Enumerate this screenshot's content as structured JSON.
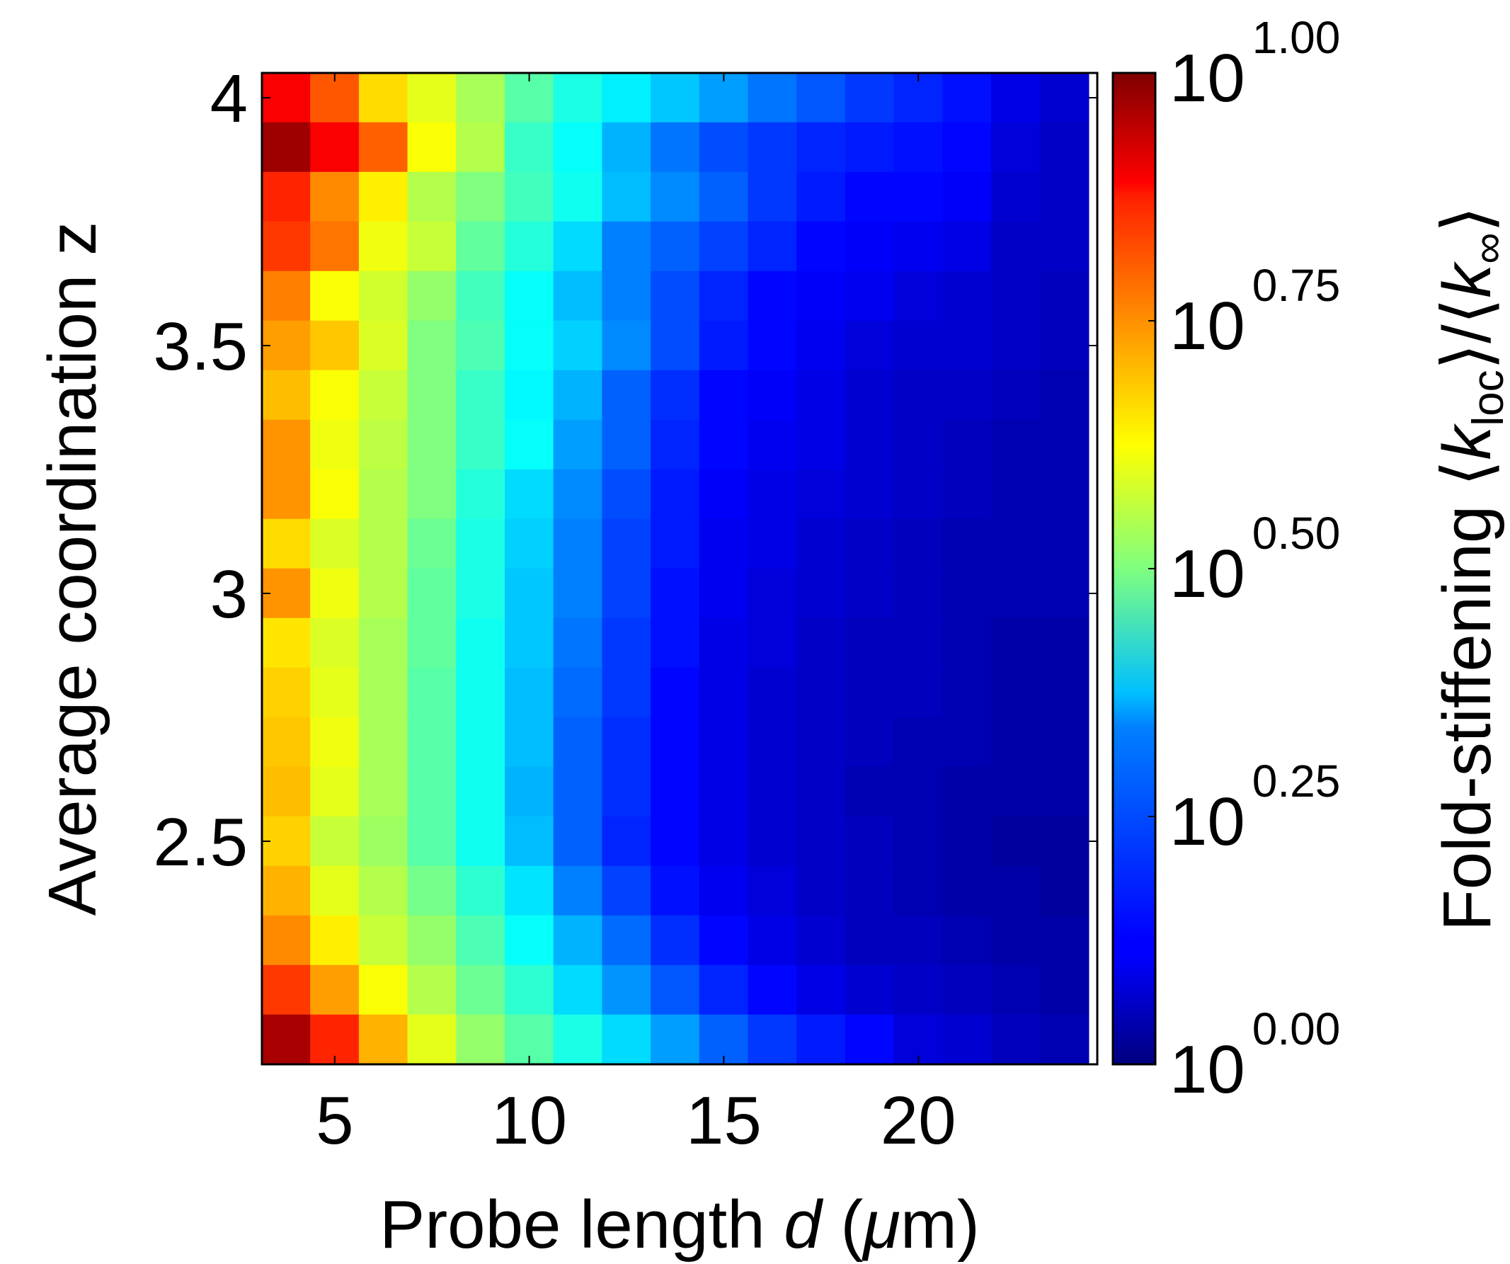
{
  "chart_data": {
    "type": "heatmap",
    "title": "",
    "xlabel": "Probe length d (μm)",
    "xlabel_parts": {
      "prefix": "Probe length ",
      "var": "d",
      "open": " (",
      "mu": "μ",
      "unit": "m)"
    },
    "ylabel": "Average coordination z",
    "colorbar_label": "Fold-stiffening ⟨k_loc⟩/⟨k_∞⟩",
    "colorbar_label_parts": {
      "prefix": "Fold-stiffening ",
      "open": "⟨",
      "k1": "k",
      "sub1": "loc",
      "mid": "⟩/⟨",
      "k2": "k",
      "sub2": "∞",
      "close": "⟩"
    },
    "x_ticks": [
      {
        "value": 5,
        "label": "5"
      },
      {
        "value": 10,
        "label": "10"
      },
      {
        "value": 15,
        "label": "15"
      },
      {
        "value": 20,
        "label": "20"
      }
    ],
    "y_ticks": [
      {
        "value": 4,
        "label": "4"
      },
      {
        "value": 3.5,
        "label": "3.5"
      },
      {
        "value": 3,
        "label": "3"
      },
      {
        "value": 2.5,
        "label": "2.5"
      }
    ],
    "xlim": [
      3.13,
      24.6
    ],
    "ylim": [
      2.05,
      4.05
    ],
    "x_centers": [
      3.75,
      5.0,
      6.25,
      7.5,
      8.75,
      10.0,
      11.25,
      12.5,
      13.75,
      15.0,
      16.25,
      17.5,
      18.75,
      20.0,
      21.25,
      22.5,
      23.75
    ],
    "y_centers": [
      4.0,
      3.9,
      3.8,
      3.7,
      3.6,
      3.5,
      3.4,
      3.3,
      3.2,
      3.1,
      3.0,
      2.9,
      2.8,
      2.7,
      2.6,
      2.5,
      2.4,
      2.3,
      2.2,
      2.1
    ],
    "color_scale": "log10",
    "colormap": "jet",
    "color_range": [
      0,
      1
    ],
    "colorbar_ticks": [
      {
        "base": "10",
        "exp": "0.00",
        "value": 0.0
      },
      {
        "base": "10",
        "exp": "0.25",
        "value": 0.25
      },
      {
        "base": "10",
        "exp": "0.50",
        "value": 0.5
      },
      {
        "base": "10",
        "exp": "0.75",
        "value": 0.75
      },
      {
        "base": "10",
        "exp": "1.00",
        "value": 1.0
      }
    ],
    "log10_values": [
      [
        0.88,
        0.79,
        0.66,
        0.6,
        0.54,
        0.46,
        0.4,
        0.36,
        0.32,
        0.28,
        0.24,
        0.21,
        0.18,
        0.16,
        0.14,
        0.1,
        0.08
      ],
      [
        0.97,
        0.88,
        0.78,
        0.62,
        0.55,
        0.43,
        0.38,
        0.3,
        0.24,
        0.2,
        0.18,
        0.16,
        0.15,
        0.14,
        0.13,
        0.09,
        0.07
      ],
      [
        0.84,
        0.74,
        0.64,
        0.55,
        0.5,
        0.44,
        0.39,
        0.31,
        0.26,
        0.22,
        0.18,
        0.15,
        0.13,
        0.13,
        0.12,
        0.08,
        0.07
      ],
      [
        0.82,
        0.76,
        0.61,
        0.57,
        0.47,
        0.41,
        0.34,
        0.25,
        0.22,
        0.19,
        0.16,
        0.13,
        0.12,
        0.11,
        0.1,
        0.07,
        0.07
      ],
      [
        0.75,
        0.62,
        0.58,
        0.52,
        0.44,
        0.38,
        0.31,
        0.25,
        0.2,
        0.16,
        0.13,
        0.12,
        0.11,
        0.09,
        0.08,
        0.07,
        0.06
      ],
      [
        0.72,
        0.68,
        0.59,
        0.5,
        0.45,
        0.38,
        0.33,
        0.26,
        0.2,
        0.15,
        0.13,
        0.11,
        0.09,
        0.08,
        0.08,
        0.07,
        0.06
      ],
      [
        0.69,
        0.62,
        0.57,
        0.5,
        0.43,
        0.37,
        0.3,
        0.22,
        0.17,
        0.13,
        0.12,
        0.1,
        0.08,
        0.07,
        0.07,
        0.06,
        0.05
      ],
      [
        0.73,
        0.61,
        0.56,
        0.5,
        0.43,
        0.38,
        0.28,
        0.22,
        0.16,
        0.13,
        0.11,
        0.1,
        0.08,
        0.07,
        0.06,
        0.05,
        0.05
      ],
      [
        0.73,
        0.62,
        0.55,
        0.5,
        0.41,
        0.34,
        0.26,
        0.2,
        0.15,
        0.12,
        0.1,
        0.09,
        0.08,
        0.07,
        0.06,
        0.05,
        0.05
      ],
      [
        0.66,
        0.59,
        0.55,
        0.48,
        0.4,
        0.33,
        0.25,
        0.19,
        0.15,
        0.11,
        0.1,
        0.08,
        0.07,
        0.06,
        0.05,
        0.05,
        0.05
      ],
      [
        0.73,
        0.61,
        0.55,
        0.47,
        0.4,
        0.32,
        0.25,
        0.19,
        0.14,
        0.11,
        0.09,
        0.08,
        0.07,
        0.06,
        0.05,
        0.05,
        0.05
      ],
      [
        0.65,
        0.59,
        0.54,
        0.47,
        0.39,
        0.32,
        0.24,
        0.18,
        0.14,
        0.1,
        0.09,
        0.07,
        0.06,
        0.06,
        0.05,
        0.04,
        0.04
      ],
      [
        0.67,
        0.6,
        0.54,
        0.46,
        0.39,
        0.31,
        0.23,
        0.18,
        0.13,
        0.1,
        0.08,
        0.07,
        0.06,
        0.06,
        0.05,
        0.04,
        0.04
      ],
      [
        0.68,
        0.61,
        0.54,
        0.46,
        0.39,
        0.31,
        0.22,
        0.17,
        0.13,
        0.1,
        0.08,
        0.07,
        0.06,
        0.05,
        0.05,
        0.04,
        0.04
      ],
      [
        0.69,
        0.6,
        0.54,
        0.46,
        0.39,
        0.3,
        0.22,
        0.17,
        0.13,
        0.1,
        0.08,
        0.07,
        0.05,
        0.05,
        0.04,
        0.04,
        0.04
      ],
      [
        0.67,
        0.57,
        0.53,
        0.46,
        0.39,
        0.31,
        0.22,
        0.16,
        0.13,
        0.1,
        0.08,
        0.07,
        0.06,
        0.05,
        0.04,
        0.03,
        0.03
      ],
      [
        0.7,
        0.6,
        0.55,
        0.49,
        0.42,
        0.35,
        0.25,
        0.19,
        0.14,
        0.11,
        0.09,
        0.07,
        0.06,
        0.05,
        0.04,
        0.04,
        0.03
      ],
      [
        0.74,
        0.64,
        0.57,
        0.52,
        0.45,
        0.38,
        0.3,
        0.23,
        0.17,
        0.13,
        0.1,
        0.08,
        0.06,
        0.06,
        0.05,
        0.04,
        0.04
      ],
      [
        0.82,
        0.72,
        0.62,
        0.55,
        0.48,
        0.42,
        0.34,
        0.27,
        0.21,
        0.16,
        0.13,
        0.1,
        0.08,
        0.07,
        0.06,
        0.05,
        0.04
      ],
      [
        0.96,
        0.84,
        0.7,
        0.6,
        0.52,
        0.46,
        0.4,
        0.34,
        0.28,
        0.22,
        0.18,
        0.15,
        0.13,
        0.09,
        0.08,
        0.06,
        0.05
      ]
    ]
  }
}
